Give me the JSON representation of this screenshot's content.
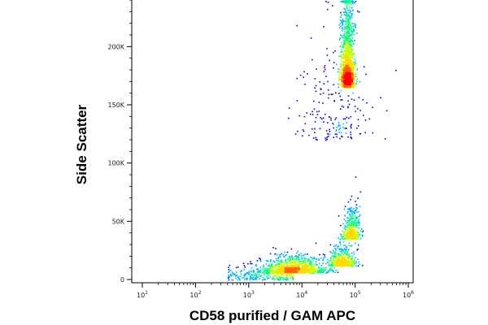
{
  "chart_data": {
    "type": "density-scatter",
    "xlabel": "CD58 purified / GAM APC",
    "ylabel": "Side Scatter",
    "x_scale": "log",
    "xlim": [
      10,
      1000000
    ],
    "ylim": [
      0,
      240000
    ],
    "x_ticks": [
      {
        "value": 10,
        "base": "10",
        "exp": "1"
      },
      {
        "value": 100,
        "base": "10",
        "exp": "2"
      },
      {
        "value": 1000,
        "base": "10",
        "exp": "3"
      },
      {
        "value": 10000,
        "base": "10",
        "exp": "4"
      },
      {
        "value": 100000,
        "base": "10",
        "exp": "5"
      },
      {
        "value": 1000000,
        "base": "10",
        "exp": "6"
      }
    ],
    "y_ticks": [
      {
        "value": 0,
        "label": "0"
      },
      {
        "value": 50000,
        "label": "50K"
      },
      {
        "value": 100000,
        "label": "100K"
      },
      {
        "value": 150000,
        "label": "150K"
      },
      {
        "value": 200000,
        "label": "200K"
      }
    ],
    "populations": [
      {
        "name": "",
        "x_center_log10": 3.85,
        "y_center": 6000,
        "x_spread_log10": 0.3,
        "y_spread": 7000,
        "count": 1400,
        "tail_to_x_log10": 2.6
      },
      {
        "name": "",
        "x_center_log10": 4.75,
        "y_center": 12000,
        "x_spread_log10": 0.12,
        "y_spread": 9000,
        "count": 500
      },
      {
        "name": "",
        "x_center_log10": 4.93,
        "y_center": 35000,
        "x_spread_log10": 0.08,
        "y_spread": 14000,
        "count": 450
      },
      {
        "name": "",
        "x_center_log10": 4.85,
        "y_center": 165000,
        "x_spread_log10": 0.06,
        "y_spread": 38000,
        "count": 1500
      },
      {
        "name": "",
        "x_center_log10": 4.6,
        "y_center": 120000,
        "x_spread_log10": 0.35,
        "y_spread": 60000,
        "count": 220
      }
    ],
    "colormap": [
      "#0000ff",
      "#00b4ff",
      "#00ff80",
      "#c8ff00",
      "#ffdc00",
      "#ff6400",
      "#ff0000"
    ],
    "grid": false,
    "legend": "none"
  }
}
